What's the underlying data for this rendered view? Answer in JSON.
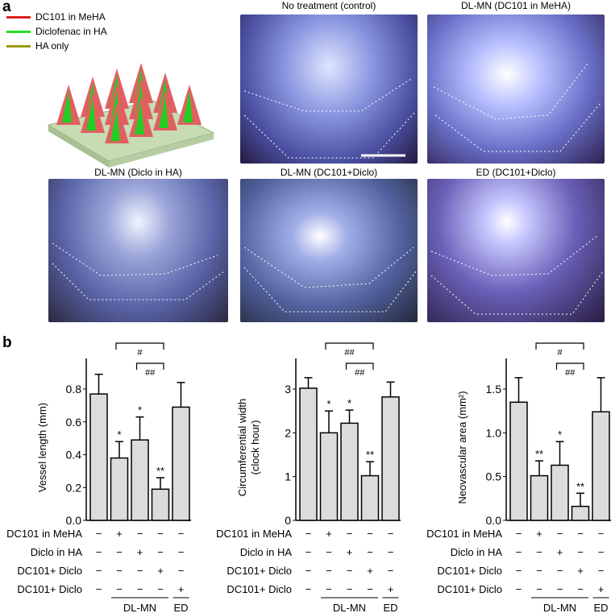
{
  "panel_a": {
    "label": "a",
    "legend": [
      {
        "label": "DC101 in MeHA",
        "color": "#e02020"
      },
      {
        "label": "Diclofenac in HA",
        "color": "#22dd22"
      },
      {
        "label": "HA only",
        "color": "#9a9a10"
      }
    ],
    "photos": [
      {
        "title": "No treatment (control)"
      },
      {
        "title": "DL-MN (DC101 in MeHA)"
      },
      {
        "title": "DL-MN (Diclo in HA)"
      },
      {
        "title": "DL-MN (DC101+Diclo)"
      },
      {
        "title": "ED (DC101+Diclo)"
      }
    ]
  },
  "panel_b": {
    "label": "b",
    "row_labels": [
      "DC101 in MeHA",
      "Diclo in HA",
      "DC101+ Diclo",
      "DC101+ Diclo"
    ],
    "signs": [
      [
        "−",
        "+",
        "−",
        "−",
        "−"
      ],
      [
        "−",
        "−",
        "+",
        "−",
        "−"
      ],
      [
        "−",
        "−",
        "−",
        "+",
        "−"
      ],
      [
        "−",
        "−",
        "−",
        "−",
        "+"
      ]
    ],
    "group_labels": [
      "DL-MN",
      "ED"
    ]
  },
  "chart_data": [
    {
      "type": "bar",
      "ylabel": "Vessel length (mm)",
      "ylabel2": "",
      "ylim": [
        0,
        0.8
      ],
      "ticks": [
        "0.0",
        "0.2",
        "0.4",
        "0.6",
        "0.8"
      ],
      "tickvals": [
        0,
        0.2,
        0.4,
        0.6,
        0.8
      ],
      "categories": [
        "Control",
        "DC101 in MeHA",
        "Diclo in HA",
        "DC101+Diclo DL-MN",
        "DC101+Diclo ED"
      ],
      "values": [
        0.77,
        0.38,
        0.49,
        0.19,
        0.69
      ],
      "errors": [
        0.12,
        0.1,
        0.14,
        0.07,
        0.15
      ],
      "stars": [
        "",
        "*",
        "*",
        "**",
        ""
      ],
      "brackets": [
        {
          "from": 1,
          "to": 3,
          "label": "#"
        },
        {
          "from": 2,
          "to": 3,
          "label": "##"
        }
      ]
    },
    {
      "type": "bar",
      "ylabel": "Circumferential width",
      "ylabel2": "(clock hour)",
      "ylim": [
        0,
        3
      ],
      "ticks": [
        "0",
        "1",
        "2",
        "3"
      ],
      "tickvals": [
        0,
        1,
        2,
        3
      ],
      "categories": [
        "Control",
        "DC101 in MeHA",
        "Diclo in HA",
        "DC101+Diclo DL-MN",
        "DC101+Diclo ED"
      ],
      "values": [
        3.02,
        2.0,
        2.22,
        1.02,
        2.82
      ],
      "errors": [
        0.24,
        0.5,
        0.3,
        0.32,
        0.34
      ],
      "stars": [
        "",
        "*",
        "*",
        "**",
        ""
      ],
      "brackets": [
        {
          "from": 1,
          "to": 3,
          "label": "##"
        },
        {
          "from": 2,
          "to": 3,
          "label": "##"
        }
      ]
    },
    {
      "type": "bar",
      "ylabel": "Neovascular area (mm²)",
      "ylabel2": "",
      "ylim": [
        0,
        1.5
      ],
      "ticks": [
        "0.0",
        "0.5",
        "1.0",
        "1.5"
      ],
      "tickvals": [
        0,
        0.5,
        1.0,
        1.5
      ],
      "categories": [
        "Control",
        "DC101 in MeHA",
        "Diclo in HA",
        "DC101+Diclo DL-MN",
        "DC101+Diclo ED"
      ],
      "values": [
        1.35,
        0.51,
        0.63,
        0.16,
        1.24
      ],
      "errors": [
        0.28,
        0.17,
        0.27,
        0.15,
        0.39
      ],
      "stars": [
        "",
        "**",
        "*",
        "**",
        ""
      ],
      "brackets": [
        {
          "from": 1,
          "to": 3,
          "label": "#"
        },
        {
          "from": 2,
          "to": 3,
          "label": "##"
        }
      ]
    }
  ]
}
